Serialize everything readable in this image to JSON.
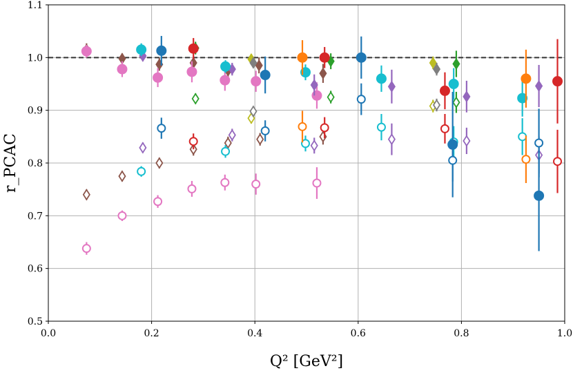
{
  "chart_data": {
    "type": "scatter",
    "xlabel": "Q² [GeV²]",
    "ylabel": "r_PCAC",
    "xlim": [
      0.0,
      1.0
    ],
    "ylim": [
      0.5,
      1.1
    ],
    "xticks": [
      0.0,
      0.2,
      0.4,
      0.6,
      0.8,
      1.0
    ],
    "xtick_labels": [
      "0.0",
      "0.2",
      "0.4",
      "0.6",
      "0.8",
      "1.0"
    ],
    "yticks": [
      0.5,
      0.6,
      0.7,
      0.8,
      0.9,
      1.0,
      1.1
    ],
    "ytick_labels": [
      "0.5",
      "0.6",
      "0.7",
      "0.8",
      "0.9",
      "1.0",
      "1.1"
    ],
    "grid": true,
    "reference_line": {
      "y": 1.0,
      "style": "dashed"
    },
    "series": [
      {
        "name": "brown",
        "color": "#8c564b",
        "marker": "diamond",
        "filled": true,
        "points": [
          [
            0.074,
            1.015,
            0.012
          ],
          [
            0.143,
            0.998,
            0.01
          ],
          [
            0.215,
            0.987,
            0.012
          ],
          [
            0.281,
            0.99,
            0.012
          ],
          [
            0.348,
            0.975,
            0.015
          ],
          [
            0.408,
            0.985,
            0.015
          ],
          [
            0.532,
            0.97,
            0.018
          ]
        ]
      },
      {
        "name": "brown",
        "color": "#8c564b",
        "marker": "diamond",
        "filled": false,
        "points": [
          [
            0.074,
            0.74,
            0.01
          ],
          [
            0.143,
            0.775,
            0.01
          ],
          [
            0.215,
            0.8,
            0.01
          ],
          [
            0.281,
            0.826,
            0.012
          ],
          [
            0.348,
            0.838,
            0.012
          ],
          [
            0.41,
            0.845,
            0.012
          ],
          [
            0.532,
            0.85,
            0.015
          ]
        ]
      },
      {
        "name": "pink",
        "color": "#e377c2",
        "marker": "circle",
        "filled": true,
        "points": [
          [
            0.074,
            1.012,
            0.012
          ],
          [
            0.143,
            0.978,
            0.015
          ],
          [
            0.212,
            0.962,
            0.018
          ],
          [
            0.278,
            0.973,
            0.02
          ],
          [
            0.342,
            0.957,
            0.02
          ],
          [
            0.402,
            0.955,
            0.02
          ],
          [
            0.52,
            0.928,
            0.025
          ]
        ]
      },
      {
        "name": "pink",
        "color": "#e377c2",
        "marker": "circle",
        "filled": false,
        "points": [
          [
            0.074,
            0.638,
            0.012
          ],
          [
            0.143,
            0.7,
            0.01
          ],
          [
            0.212,
            0.727,
            0.012
          ],
          [
            0.278,
            0.751,
            0.015
          ],
          [
            0.342,
            0.763,
            0.015
          ],
          [
            0.402,
            0.76,
            0.02
          ],
          [
            0.52,
            0.762,
            0.03
          ]
        ]
      },
      {
        "name": "purple",
        "color": "#9467bd",
        "marker": "diamond",
        "filled": true,
        "points": [
          [
            0.183,
            1.003,
            0.01
          ],
          [
            0.356,
            0.978,
            0.012
          ],
          [
            0.515,
            0.948,
            0.02
          ],
          [
            0.665,
            0.945,
            0.032
          ],
          [
            0.81,
            0.926,
            0.03
          ],
          [
            0.95,
            0.946,
            0.04
          ]
        ]
      },
      {
        "name": "purple",
        "color": "#9467bd",
        "marker": "diamond",
        "filled": false,
        "points": [
          [
            0.183,
            0.829,
            0.01
          ],
          [
            0.356,
            0.853,
            0.012
          ],
          [
            0.515,
            0.833,
            0.015
          ],
          [
            0.665,
            0.845,
            0.03
          ],
          [
            0.81,
            0.842,
            0.025
          ],
          [
            0.95,
            0.815,
            0.035
          ]
        ]
      },
      {
        "name": "cyan",
        "color": "#17becf",
        "marker": "circle",
        "filled": true,
        "points": [
          [
            0.18,
            1.015,
            0.012
          ],
          [
            0.343,
            0.983,
            0.012
          ],
          [
            0.498,
            0.972,
            0.015
          ],
          [
            0.645,
            0.96,
            0.025
          ],
          [
            0.785,
            0.95,
            0.03
          ],
          [
            0.918,
            0.923,
            0.035
          ]
        ]
      },
      {
        "name": "cyan",
        "color": "#17becf",
        "marker": "circle",
        "filled": false,
        "points": [
          [
            0.18,
            0.784,
            0.01
          ],
          [
            0.343,
            0.822,
            0.012
          ],
          [
            0.498,
            0.837,
            0.015
          ],
          [
            0.645,
            0.868,
            0.025
          ],
          [
            0.785,
            0.84,
            0.03
          ],
          [
            0.918,
            0.85,
            0.035
          ]
        ]
      },
      {
        "name": "olive",
        "color": "#bcbd22",
        "marker": "diamond",
        "filled": true,
        "points": [
          [
            0.393,
            0.997,
            0.01
          ],
          [
            0.745,
            0.99,
            0.012
          ]
        ]
      },
      {
        "name": "olive",
        "color": "#bcbd22",
        "marker": "diamond",
        "filled": false,
        "points": [
          [
            0.393,
            0.885,
            0.01
          ],
          [
            0.745,
            0.908,
            0.012
          ]
        ]
      },
      {
        "name": "gray",
        "color": "#7f7f7f",
        "marker": "diamond",
        "filled": true,
        "points": [
          [
            0.397,
            0.99,
            0.01
          ],
          [
            0.752,
            0.978,
            0.012
          ]
        ]
      },
      {
        "name": "gray",
        "color": "#7f7f7f",
        "marker": "diamond",
        "filled": false,
        "points": [
          [
            0.397,
            0.898,
            0.01
          ],
          [
            0.752,
            0.91,
            0.012
          ]
        ]
      },
      {
        "name": "green",
        "color": "#2ca02c",
        "marker": "diamond",
        "filled": true,
        "points": [
          [
            0.285,
            1.018,
            0.012
          ],
          [
            0.547,
            0.993,
            0.015
          ],
          [
            0.79,
            0.988,
            0.025
          ]
        ]
      },
      {
        "name": "green",
        "color": "#2ca02c",
        "marker": "diamond",
        "filled": false,
        "points": [
          [
            0.285,
            0.922,
            0.01
          ],
          [
            0.547,
            0.925,
            0.012
          ],
          [
            0.79,
            0.915,
            0.02
          ]
        ]
      },
      {
        "name": "blue",
        "color": "#1f77b4",
        "marker": "circle",
        "filled": true,
        "points": [
          [
            0.219,
            1.013,
            0.028
          ],
          [
            0.42,
            0.967,
            0.035
          ],
          [
            0.606,
            1.0,
            0.04
          ],
          [
            0.783,
            0.835,
            0.1
          ],
          [
            0.95,
            0.738,
            0.105
          ]
        ]
      },
      {
        "name": "blue",
        "color": "#1f77b4",
        "marker": "circle",
        "filled": false,
        "points": [
          [
            0.219,
            0.866,
            0.02
          ],
          [
            0.42,
            0.861,
            0.02
          ],
          [
            0.606,
            0.921,
            0.03
          ],
          [
            0.783,
            0.805,
            0.04
          ],
          [
            0.95,
            0.838,
            0.065
          ]
        ]
      },
      {
        "name": "orange",
        "color": "#ff7f0e",
        "marker": "circle",
        "filled": true,
        "points": [
          [
            0.492,
            1.0,
            0.033
          ],
          [
            0.925,
            0.96,
            0.055
          ]
        ]
      },
      {
        "name": "orange",
        "color": "#ff7f0e",
        "marker": "circle",
        "filled": false,
        "points": [
          [
            0.492,
            0.869,
            0.03
          ],
          [
            0.925,
            0.807,
            0.045
          ]
        ]
      },
      {
        "name": "red",
        "color": "#d62728",
        "marker": "circle",
        "filled": true,
        "points": [
          [
            0.281,
            1.017,
            0.02
          ],
          [
            0.535,
            1.0,
            0.02
          ],
          [
            0.768,
            0.937,
            0.035
          ],
          [
            0.986,
            0.955,
            0.08
          ]
        ]
      },
      {
        "name": "red",
        "color": "#d62728",
        "marker": "circle",
        "filled": false,
        "points": [
          [
            0.281,
            0.841,
            0.015
          ],
          [
            0.535,
            0.867,
            0.02
          ],
          [
            0.768,
            0.865,
            0.028
          ],
          [
            0.986,
            0.803,
            0.06
          ]
        ]
      }
    ]
  }
}
